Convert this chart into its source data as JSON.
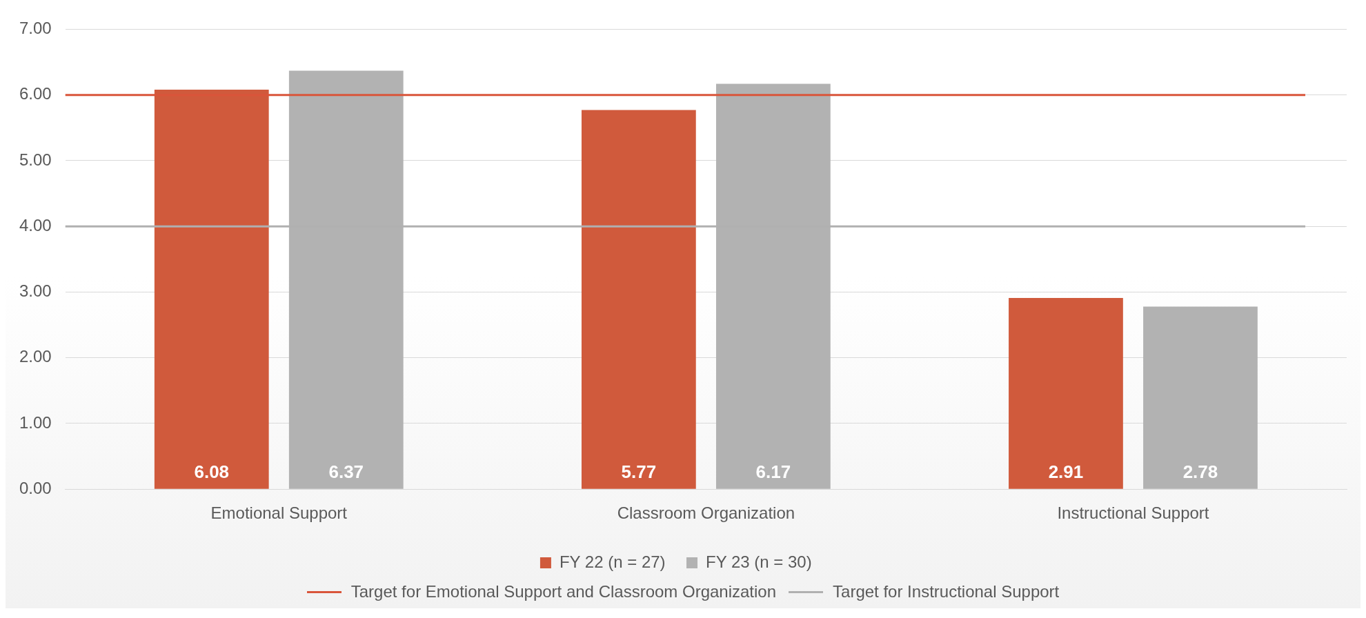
{
  "chart_data": {
    "type": "bar",
    "categories": [
      "Emotional Support",
      "Classroom Organization",
      "Instructional Support"
    ],
    "series": [
      {
        "name": "FY 22 (n = 27)",
        "color": "#d05a3c",
        "values": [
          6.08,
          5.77,
          2.91
        ]
      },
      {
        "name": "FY 23 (n = 30)",
        "color": "#b2b2b2",
        "values": [
          6.37,
          6.17,
          2.78
        ]
      }
    ],
    "ylim": [
      0,
      7
    ],
    "yticks": [
      {
        "value": 0,
        "label": "0.00"
      },
      {
        "value": 1,
        "label": "1.00"
      },
      {
        "value": 2,
        "label": "2.00"
      },
      {
        "value": 3,
        "label": "3.00"
      },
      {
        "value": 4,
        "label": "4.00"
      },
      {
        "value": 5,
        "label": "5.00"
      },
      {
        "value": 6,
        "label": "6.00"
      },
      {
        "value": 7,
        "label": "7.00"
      }
    ],
    "grid": "y",
    "legend": "bottom",
    "data_labels": true,
    "ref_lines": [
      {
        "axis": "y",
        "value": 6,
        "label": "Target for Emotional Support and Classroom Organization",
        "color": "#d9553a"
      },
      {
        "axis": "y",
        "value": 4,
        "label": "Target for Instructional Support",
        "color": "#b0b0b0"
      }
    ]
  }
}
